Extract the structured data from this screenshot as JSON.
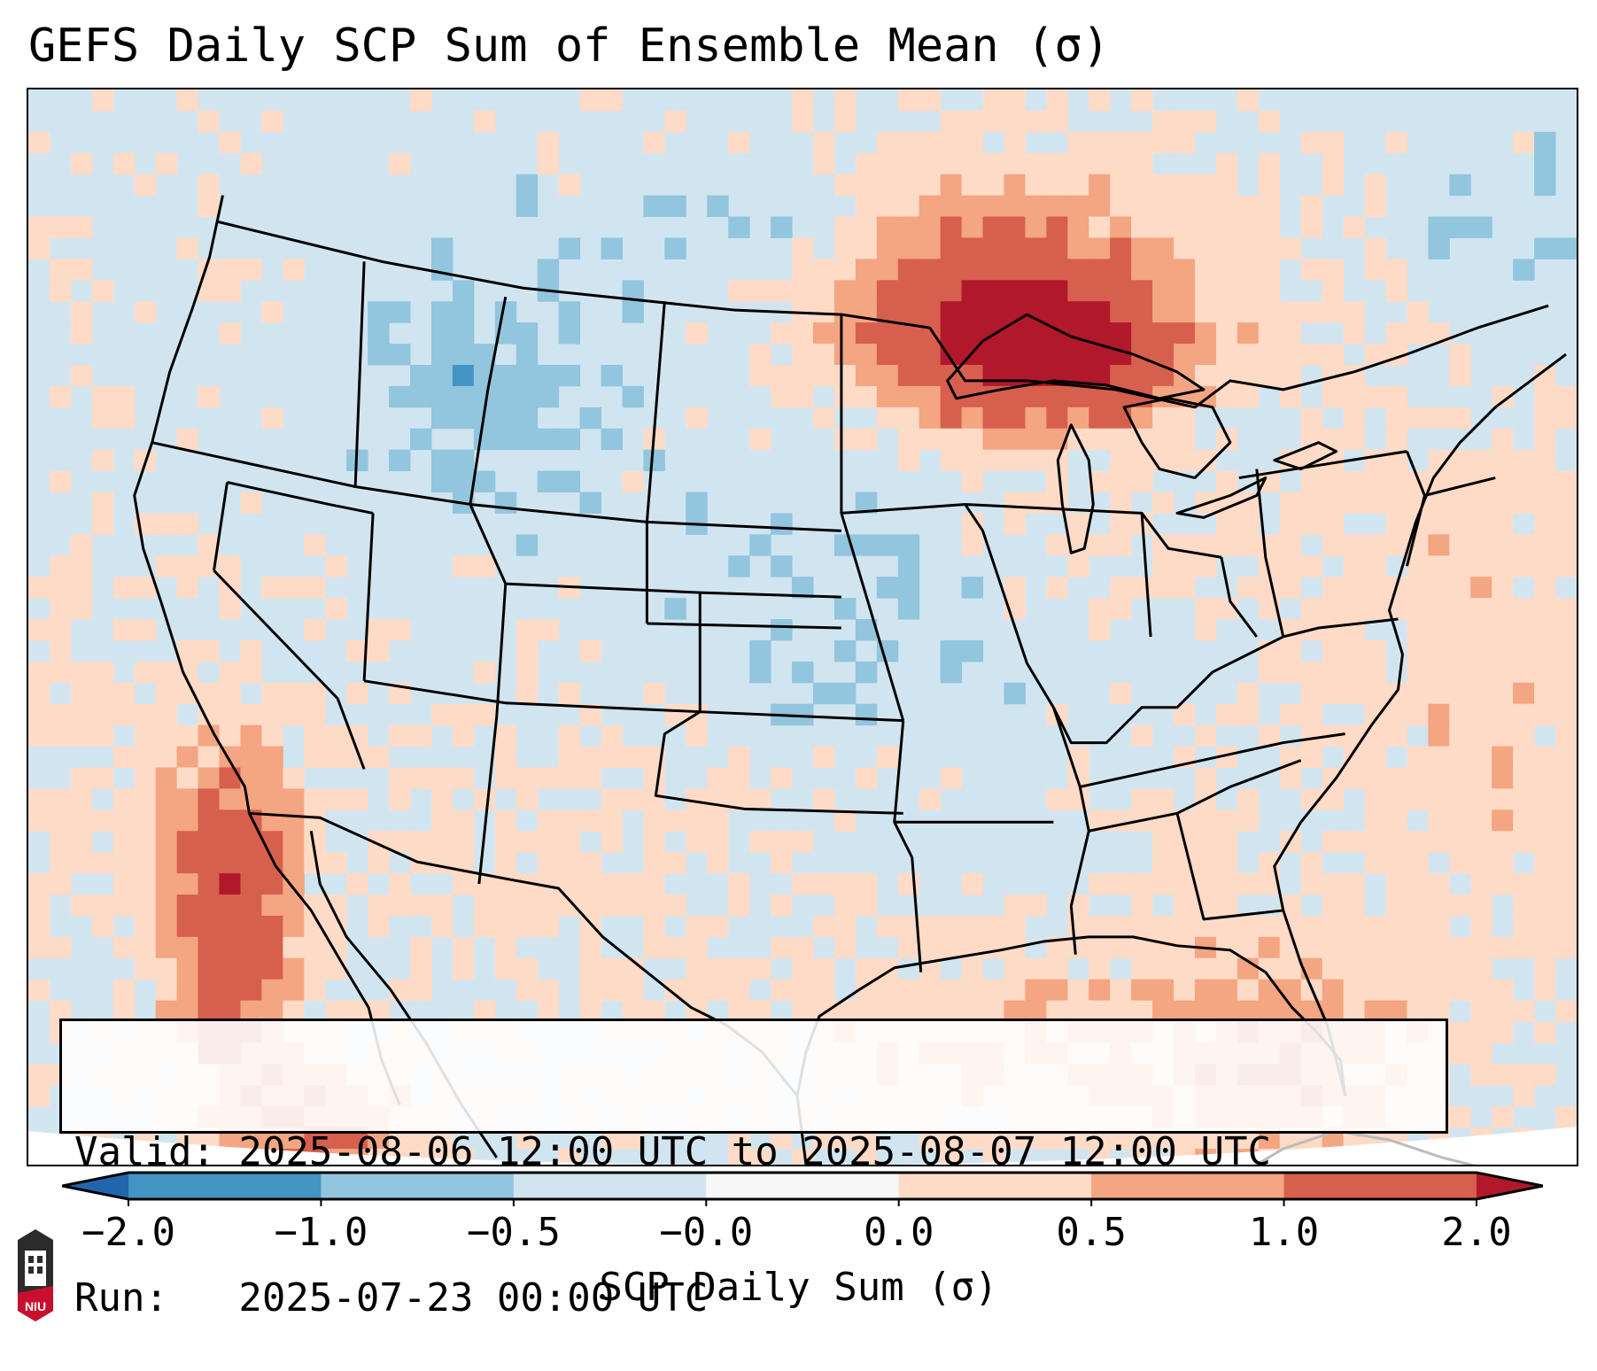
{
  "title": "GEFS Daily SCP Sum of Ensemble Mean (σ)",
  "info_box": {
    "valid_line": "Valid: 2025-08-06 12:00 UTC to 2025-08-07 12:00 UTC",
    "run_line": "Run:   2025-07-23 00:00 UTC"
  },
  "colorbar": {
    "label": "SCP Daily Sum (σ)",
    "ticks": [
      "−2.0",
      "−1.0",
      "−0.5",
      "−0.0",
      "0.0",
      "0.5",
      "1.0",
      "2.0"
    ],
    "bins": [
      {
        "range": "< -2.0",
        "color": "#2166ac"
      },
      {
        "range": "-2.0 to -1.0",
        "color": "#4393c3"
      },
      {
        "range": "-1.0 to -0.5",
        "color": "#92c5de"
      },
      {
        "range": "-0.5 to -0.0",
        "color": "#d1e5f0"
      },
      {
        "range": "-0.0 to 0.0",
        "color": "#f7f7f7"
      },
      {
        "range": "0.0 to 0.5",
        "color": "#fddbc7"
      },
      {
        "range": "0.5 to 1.0",
        "color": "#f4a582"
      },
      {
        "range": "1.0 to 2.0",
        "color": "#d6604d"
      },
      {
        "range": "> 2.0",
        "color": "#b2182b"
      }
    ],
    "extend": "both"
  },
  "logo": {
    "text": "NIU",
    "name": "Northern Illinois University"
  },
  "chart_data": {
    "type": "heatmap",
    "title": "GEFS Daily SCP Sum of Ensemble Mean (σ)",
    "variable": "SCP Daily Sum (σ)",
    "region": "Contiguous United States",
    "valid_start": "2025-08-06 12:00 UTC",
    "valid_end": "2025-08-07 12:00 UTC",
    "run": "2025-07-23 00:00 UTC",
    "levels": [
      -2.0,
      -1.0,
      -0.5,
      -0.0,
      0.0,
      0.5,
      1.0,
      2.0
    ],
    "regions": [
      {
        "area": "Upper Great Lakes / Lake Superior / N Michigan",
        "value_range": [
          1.0,
          2.5
        ],
        "category": "strong positive"
      },
      {
        "area": "Ontario north of Great Lakes",
        "value_range": [
          0.5,
          1.5
        ],
        "category": "positive"
      },
      {
        "area": "Northern Mexico (Sierra Madre Occidental, Sinaloa/Sonora)",
        "value_range": [
          0.5,
          2.5
        ],
        "category": "positive"
      },
      {
        "area": "Gulf of Mexico",
        "value_range": [
          0.0,
          1.0
        ],
        "category": "weak positive"
      },
      {
        "area": "Western Atlantic off East Coast",
        "value_range": [
          0.0,
          1.0
        ],
        "category": "weak positive"
      },
      {
        "area": "Texas / Southern Plains / Desert Southwest",
        "value_range": [
          0.0,
          0.5
        ],
        "category": "weak positive"
      },
      {
        "area": "Ohio Valley / Pennsylvania / Mid-Atlantic",
        "value_range": [
          0.0,
          0.5
        ],
        "category": "weak positive"
      },
      {
        "area": "Georgia",
        "value_range": [
          0.0,
          1.0
        ],
        "category": "weak positive"
      },
      {
        "area": "Northern Rockies (Montana, Wyoming)",
        "value_range": [
          -1.0,
          -0.5
        ],
        "category": "negative"
      },
      {
        "area": "Pacific Northwest / Great Basin / Central Plains / Midwest / Southeast",
        "value_range": [
          -0.5,
          0.0
        ],
        "category": "weak negative"
      },
      {
        "area": "Northeast US / New England",
        "value_range": [
          -0.5,
          0.0
        ],
        "category": "weak negative"
      },
      {
        "area": "Eastern Pacific",
        "value_range": [
          -0.5,
          0.5
        ],
        "category": "near zero"
      }
    ]
  }
}
